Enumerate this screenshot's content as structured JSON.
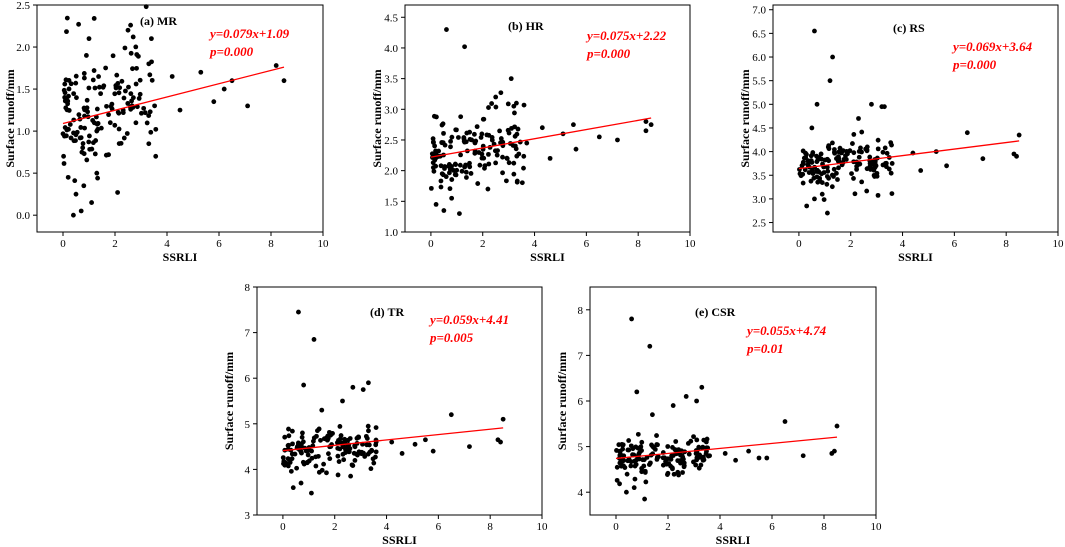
{
  "chart_data": [
    {
      "type": "scatter",
      "panel_title": "(a) MR",
      "xlabel": "SSRLI",
      "ylabel": "Surface runoff/mm",
      "xlim": [
        -1,
        10
      ],
      "ylim": [
        -0.2,
        2.5
      ],
      "xticks": [
        0,
        2,
        4,
        6,
        8,
        10
      ],
      "yticks": [
        0.0,
        0.5,
        1.0,
        1.5,
        2.0,
        2.5
      ],
      "ytick_labels": [
        "0.0",
        "0.5",
        "1.0",
        "1.5",
        "2.0",
        "2.5"
      ],
      "xtick_labels": [
        "0",
        "2",
        "4",
        "6",
        "8",
        "10"
      ],
      "equation": "y=0.079x+1.09",
      "p_value": "p=0.000",
      "fit": {
        "slope": 0.079,
        "intercept": 1.09,
        "x_range": [
          0,
          8.5
        ]
      },
      "points": {
        "outliers": [
          [
            0.6,
            2.27
          ],
          [
            1.2,
            2.34
          ],
          [
            2.6,
            2.26
          ],
          [
            3.2,
            2.48
          ],
          [
            3.4,
            2.1
          ],
          [
            2.7,
            2.12
          ],
          [
            2.5,
            2.2
          ],
          [
            1.0,
            2.1
          ],
          [
            0.9,
            1.9
          ],
          [
            3.3,
            1.8
          ],
          [
            2.1,
            0.27
          ],
          [
            0.4,
            0.0
          ],
          [
            0.7,
            0.05
          ],
          [
            1.1,
            0.15
          ],
          [
            0.5,
            0.25
          ],
          [
            0.8,
            0.35
          ],
          [
            1.3,
            0.5
          ],
          [
            0.2,
            0.45
          ],
          [
            3.3,
            0.85
          ],
          [
            4.2,
            1.65
          ],
          [
            5.3,
            1.7
          ],
          [
            6.5,
            1.6
          ],
          [
            8.2,
            1.78
          ],
          [
            8.5,
            1.6
          ],
          [
            4.5,
            1.25
          ],
          [
            5.8,
            1.35
          ],
          [
            6.2,
            1.5
          ],
          [
            7.1,
            1.3
          ]
        ],
        "cluster": {
          "seed": 11,
          "count": 150,
          "x_max": 3.6,
          "center": 1.2,
          "spread": 0.32
        }
      }
    },
    {
      "type": "scatter",
      "panel_title": "(b) HR",
      "xlabel": "SSRLI",
      "ylabel": "Surface runoff/mm",
      "xlim": [
        -1,
        10
      ],
      "ylim": [
        1.0,
        4.7
      ],
      "xticks": [
        0,
        2,
        4,
        6,
        8,
        10
      ],
      "yticks": [
        1.0,
        1.5,
        2.0,
        2.5,
        3.0,
        3.5,
        4.0,
        4.5
      ],
      "ytick_labels": [
        "1.0",
        "1.5",
        "2.0",
        "2.5",
        "3.0",
        "3.5",
        "4.0",
        "4.5"
      ],
      "xtick_labels": [
        "0",
        "2",
        "4",
        "6",
        "8",
        "10"
      ],
      "equation": "y=0.075x+2.22",
      "p_value": "p=0.000",
      "fit": {
        "slope": 0.075,
        "intercept": 2.22,
        "x_range": [
          0,
          8.5
        ]
      },
      "points": {
        "outliers": [
          [
            0.6,
            4.3
          ],
          [
            1.3,
            4.02
          ],
          [
            3.1,
            3.5
          ],
          [
            3.3,
            3.1
          ],
          [
            3.2,
            3.05
          ],
          [
            2.7,
            3.27
          ],
          [
            2.5,
            3.2
          ],
          [
            0.5,
            1.35
          ],
          [
            1.1,
            1.3
          ],
          [
            0.2,
            1.45
          ],
          [
            0.8,
            1.55
          ],
          [
            2.2,
            1.7
          ],
          [
            4.3,
            2.7
          ],
          [
            5.1,
            2.6
          ],
          [
            5.6,
            2.35
          ],
          [
            6.5,
            2.55
          ],
          [
            7.2,
            2.5
          ],
          [
            8.3,
            2.8
          ],
          [
            8.5,
            2.75
          ],
          [
            8.3,
            2.65
          ],
          [
            4.6,
            2.2
          ],
          [
            5.5,
            2.75
          ],
          [
            3.7,
            2.45
          ]
        ],
        "cluster": {
          "seed": 23,
          "count": 150,
          "x_max": 3.6,
          "center": 2.3,
          "spread": 0.28
        }
      }
    },
    {
      "type": "scatter",
      "panel_title": "(c) RS",
      "xlabel": "SSRLI",
      "ylabel": "Surface runoff/mm",
      "xlim": [
        -1,
        10
      ],
      "ylim": [
        2.3,
        7.1
      ],
      "xticks": [
        0,
        2,
        4,
        6,
        8,
        10
      ],
      "yticks": [
        2.5,
        3.0,
        3.5,
        4.0,
        4.5,
        5.0,
        5.5,
        6.0,
        6.5,
        7.0
      ],
      "ytick_labels": [
        "2.5",
        "3.0",
        "3.5",
        "4.0",
        "4.5",
        "5.0",
        "5.5",
        "6.0",
        "6.5",
        "7.0"
      ],
      "xtick_labels": [
        "0",
        "2",
        "4",
        "6",
        "8",
        "10"
      ],
      "equation": "y=0.069x+3.64",
      "p_value": "p=0.000",
      "fit": {
        "slope": 0.069,
        "intercept": 3.64,
        "x_range": [
          0,
          8.5
        ]
      },
      "points": {
        "outliers": [
          [
            0.6,
            6.55
          ],
          [
            1.3,
            6.0
          ],
          [
            1.2,
            5.5
          ],
          [
            0.7,
            5.0
          ],
          [
            2.8,
            5.0
          ],
          [
            3.3,
            4.95
          ],
          [
            3.2,
            4.95
          ],
          [
            2.3,
            4.7
          ],
          [
            0.5,
            4.5
          ],
          [
            1.1,
            2.7
          ],
          [
            0.3,
            2.85
          ],
          [
            0.6,
            3.0
          ],
          [
            0.9,
            3.1
          ],
          [
            4.4,
            3.97
          ],
          [
            5.3,
            4.0
          ],
          [
            6.5,
            4.4
          ],
          [
            8.5,
            4.35
          ],
          [
            8.3,
            3.95
          ],
          [
            8.4,
            3.9
          ],
          [
            5.7,
            3.7
          ],
          [
            7.1,
            3.85
          ],
          [
            4.7,
            3.6
          ],
          [
            3.6,
            3.75
          ]
        ],
        "cluster": {
          "seed": 37,
          "count": 150,
          "x_max": 3.6,
          "center": 3.65,
          "spread": 0.28
        }
      }
    },
    {
      "type": "scatter",
      "panel_title": "(d) TR",
      "xlabel": "SSRLI",
      "ylabel": "Surface runoff/mm",
      "xlim": [
        -1,
        10
      ],
      "ylim": [
        3.0,
        8.0
      ],
      "xticks": [
        0,
        2,
        4,
        6,
        8,
        10
      ],
      "yticks": [
        3,
        4,
        5,
        6,
        7,
        8
      ],
      "ytick_labels": [
        "3",
        "4",
        "5",
        "6",
        "7",
        "8"
      ],
      "xtick_labels": [
        "0",
        "2",
        "4",
        "6",
        "8",
        "10"
      ],
      "equation": "y=0.059x+4.41",
      "p_value": "p=0.005",
      "fit": {
        "slope": 0.059,
        "intercept": 4.41,
        "x_range": [
          0,
          8.5
        ]
      },
      "points": {
        "outliers": [
          [
            0.6,
            7.45
          ],
          [
            1.2,
            6.85
          ],
          [
            0.8,
            5.85
          ],
          [
            3.3,
            5.9
          ],
          [
            3.1,
            5.75
          ],
          [
            2.7,
            5.8
          ],
          [
            2.3,
            5.5
          ],
          [
            1.5,
            5.3
          ],
          [
            1.1,
            3.48
          ],
          [
            0.4,
            3.6
          ],
          [
            0.7,
            3.7
          ],
          [
            4.2,
            4.6
          ],
          [
            5.1,
            4.55
          ],
          [
            5.5,
            4.65
          ],
          [
            6.5,
            5.2
          ],
          [
            7.2,
            4.5
          ],
          [
            8.3,
            4.65
          ],
          [
            8.5,
            5.1
          ],
          [
            8.4,
            4.6
          ],
          [
            5.8,
            4.4
          ],
          [
            4.6,
            4.35
          ],
          [
            3.6,
            4.6
          ]
        ],
        "cluster": {
          "seed": 53,
          "count": 150,
          "x_max": 3.6,
          "center": 4.4,
          "spread": 0.22
        }
      }
    },
    {
      "type": "scatter",
      "panel_title": "(e) CSR",
      "xlabel": "SSRLI",
      "ylabel": "Surface runoff/mm",
      "xlim": [
        -1,
        10
      ],
      "ylim": [
        3.5,
        8.5
      ],
      "xticks": [
        0,
        2,
        4,
        6,
        8,
        10
      ],
      "yticks": [
        4,
        5,
        6,
        7,
        8
      ],
      "ytick_labels": [
        "4",
        "5",
        "6",
        "7",
        "8"
      ],
      "xtick_labels": [
        "0",
        "2",
        "4",
        "6",
        "8",
        "10"
      ],
      "equation": "y=0.055x+4.74",
      "p_value": "p=0.01",
      "fit": {
        "slope": 0.055,
        "intercept": 4.74,
        "x_range": [
          0,
          8.5
        ]
      },
      "points": {
        "outliers": [
          [
            0.6,
            7.8
          ],
          [
            1.3,
            7.2
          ],
          [
            0.8,
            6.2
          ],
          [
            3.3,
            6.3
          ],
          [
            3.1,
            6.0
          ],
          [
            2.7,
            6.1
          ],
          [
            2.2,
            5.9
          ],
          [
            1.4,
            5.7
          ],
          [
            1.1,
            3.85
          ],
          [
            0.4,
            4.0
          ],
          [
            0.7,
            4.1
          ],
          [
            4.2,
            4.85
          ],
          [
            5.1,
            4.9
          ],
          [
            5.5,
            4.75
          ],
          [
            6.5,
            5.55
          ],
          [
            7.2,
            4.8
          ],
          [
            8.3,
            4.85
          ],
          [
            8.5,
            5.45
          ],
          [
            8.4,
            4.9
          ],
          [
            5.8,
            4.75
          ],
          [
            4.6,
            4.7
          ],
          [
            3.6,
            4.8
          ]
        ],
        "cluster": {
          "seed": 71,
          "count": 150,
          "x_max": 3.6,
          "center": 4.75,
          "spread": 0.22
        }
      }
    }
  ]
}
